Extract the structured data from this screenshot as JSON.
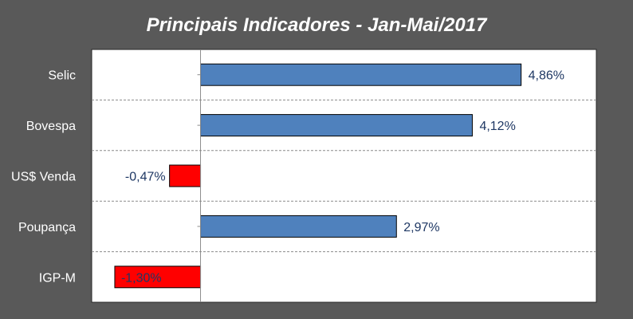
{
  "chart_data": {
    "type": "bar",
    "orientation": "horizontal",
    "title": "Principais Indicadores - Jan-Mai/2017",
    "categories": [
      "Selic",
      "Bovespa",
      "US$ Venda",
      "Poupança",
      "IGP-M"
    ],
    "values": [
      4.86,
      4.12,
      -0.47,
      2.97,
      -1.3
    ],
    "value_labels": [
      "4,86%",
      "4,12%",
      "-0,47%",
      "2,97%",
      "-1,30%"
    ],
    "unit": "%",
    "xlim": [
      -1.65,
      6.0
    ],
    "grid": "horizontal dashed separators",
    "colors": {
      "background": "#595959",
      "plot_background": "#ffffff",
      "positive": "#4f81bd",
      "negative": "#ff0000",
      "category_label": "#ffffff",
      "value_label": "#1f3864",
      "grid": "#8c8c8c"
    }
  }
}
